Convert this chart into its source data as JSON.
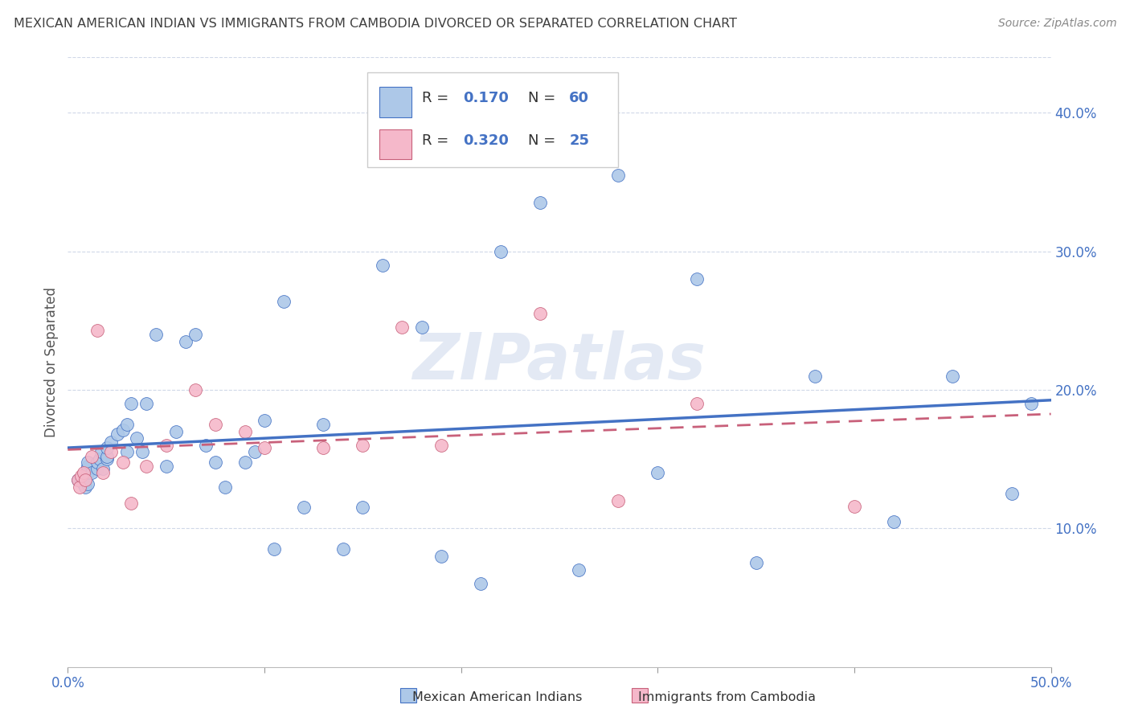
{
  "title": "MEXICAN AMERICAN INDIAN VS IMMIGRANTS FROM CAMBODIA DIVORCED OR SEPARATED CORRELATION CHART",
  "source": "Source: ZipAtlas.com",
  "ylabel": "Divorced or Separated",
  "xlim": [
    0.0,
    0.5
  ],
  "ylim": [
    0.0,
    0.44
  ],
  "yticks": [
    0.1,
    0.2,
    0.3,
    0.4
  ],
  "ytick_labels": [
    "10.0%",
    "20.0%",
    "30.0%",
    "40.0%"
  ],
  "xticks": [
    0.0,
    0.1,
    0.2,
    0.3,
    0.4,
    0.5
  ],
  "xtick_labels_show": [
    "0.0%",
    "50.0%"
  ],
  "watermark": "ZIPatlas",
  "legend_blue_r": "0.170",
  "legend_blue_n": "60",
  "legend_pink_r": "0.320",
  "legend_pink_n": "25",
  "blue_dot_color": "#adc8e8",
  "pink_dot_color": "#f5b8ca",
  "blue_line_color": "#4472C4",
  "pink_line_color": "#c8607a",
  "grid_color": "#d0d8e8",
  "title_color": "#404040",
  "axis_tick_color": "#4472C4",
  "blue_x": [
    0.005,
    0.007,
    0.008,
    0.009,
    0.01,
    0.01,
    0.01,
    0.01,
    0.01,
    0.012,
    0.015,
    0.015,
    0.016,
    0.017,
    0.018,
    0.02,
    0.02,
    0.02,
    0.022,
    0.025,
    0.028,
    0.03,
    0.03,
    0.032,
    0.035,
    0.038,
    0.04,
    0.045,
    0.05,
    0.055,
    0.06,
    0.065,
    0.07,
    0.075,
    0.08,
    0.09,
    0.095,
    0.1,
    0.105,
    0.11,
    0.12,
    0.13,
    0.14,
    0.15,
    0.16,
    0.18,
    0.19,
    0.21,
    0.22,
    0.24,
    0.26,
    0.28,
    0.3,
    0.32,
    0.35,
    0.38,
    0.42,
    0.45,
    0.48,
    0.49
  ],
  "blue_y": [
    0.135,
    0.135,
    0.132,
    0.13,
    0.132,
    0.14,
    0.143,
    0.145,
    0.148,
    0.14,
    0.143,
    0.148,
    0.15,
    0.155,
    0.143,
    0.15,
    0.152,
    0.158,
    0.162,
    0.168,
    0.171,
    0.155,
    0.175,
    0.19,
    0.165,
    0.155,
    0.19,
    0.24,
    0.145,
    0.17,
    0.235,
    0.24,
    0.16,
    0.148,
    0.13,
    0.148,
    0.155,
    0.178,
    0.085,
    0.264,
    0.115,
    0.175,
    0.085,
    0.115,
    0.29,
    0.245,
    0.08,
    0.06,
    0.3,
    0.335,
    0.07,
    0.355,
    0.14,
    0.28,
    0.075,
    0.21,
    0.105,
    0.21,
    0.125,
    0.19
  ],
  "pink_x": [
    0.005,
    0.006,
    0.007,
    0.008,
    0.009,
    0.012,
    0.015,
    0.018,
    0.022,
    0.028,
    0.032,
    0.04,
    0.05,
    0.065,
    0.075,
    0.09,
    0.1,
    0.13,
    0.15,
    0.17,
    0.19,
    0.24,
    0.28,
    0.32,
    0.4
  ],
  "pink_y": [
    0.135,
    0.13,
    0.138,
    0.14,
    0.135,
    0.152,
    0.243,
    0.14,
    0.155,
    0.148,
    0.118,
    0.145,
    0.16,
    0.2,
    0.175,
    0.17,
    0.158,
    0.158,
    0.16,
    0.245,
    0.16,
    0.255,
    0.12,
    0.19,
    0.116
  ]
}
